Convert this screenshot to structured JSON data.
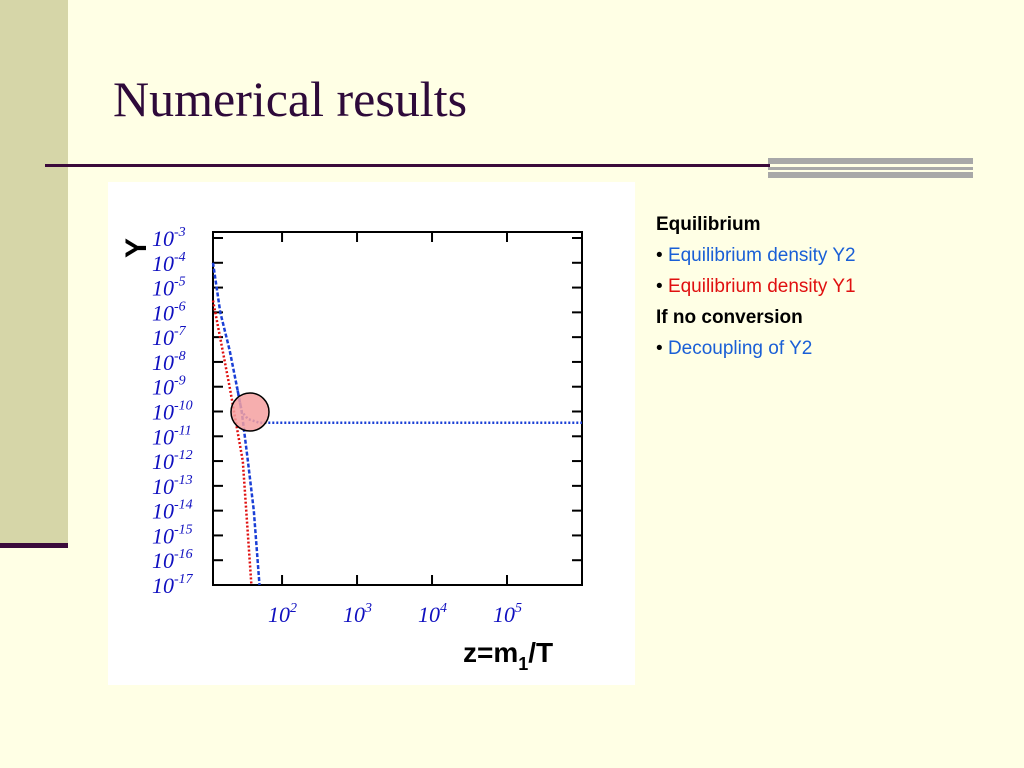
{
  "slide": {
    "title": "Numerical results",
    "notes": [
      {
        "text": "Equilibrium",
        "bold": true,
        "color": "#000000"
      },
      {
        "text": "Equilibrium density Y2",
        "bullet": true,
        "color": "#1a5fd6"
      },
      {
        "text": "Equilibrium density Y1",
        "bullet": true,
        "color": "#e01010"
      },
      {
        "text": "If no conversion",
        "bold": true,
        "color": "#000000"
      },
      {
        "text": "Decoupling of Y2",
        "bullet": true,
        "color": "#1a5fd6"
      }
    ]
  },
  "chart_data": {
    "type": "line",
    "ylabel": "Y",
    "xlabel": {
      "text": "z=m",
      "sub": "1",
      "tail": "/T"
    },
    "xscale": "log",
    "yscale": "log",
    "xlim": [
      12,
      1000000
    ],
    "ylim": [
      1e-17,
      0.001
    ],
    "xticks": [
      {
        "value": 100,
        "label": "10",
        "sup": "2"
      },
      {
        "value": 1000,
        "label": "10",
        "sup": "3"
      },
      {
        "value": 10000,
        "label": "10",
        "sup": "4"
      },
      {
        "value": 100000,
        "label": "10",
        "sup": "5"
      }
    ],
    "yticks": [
      {
        "value": 0.001,
        "label": "10",
        "sup": "-3"
      },
      {
        "value": 0.0001,
        "label": "10",
        "sup": "-4"
      },
      {
        "value": 1e-05,
        "label": "10",
        "sup": "-5"
      },
      {
        "value": 1e-06,
        "label": "10",
        "sup": "-6"
      },
      {
        "value": 1e-07,
        "label": "10",
        "sup": "-7"
      },
      {
        "value": 1e-08,
        "label": "10",
        "sup": "-8"
      },
      {
        "value": 1e-09,
        "label": "10",
        "sup": "-9"
      },
      {
        "value": 1e-10,
        "label": "10",
        "sup": "-10"
      },
      {
        "value": 1e-11,
        "label": "10",
        "sup": "-11"
      },
      {
        "value": 1e-12,
        "label": "10",
        "sup": "-12"
      },
      {
        "value": 1e-13,
        "label": "10",
        "sup": "-13"
      },
      {
        "value": 1e-14,
        "label": "10",
        "sup": "-14"
      },
      {
        "value": 1e-15,
        "label": "10",
        "sup": "-15"
      },
      {
        "value": 1e-16,
        "label": "10",
        "sup": "-16"
      },
      {
        "value": 1e-17,
        "label": "10",
        "sup": "-17"
      }
    ],
    "series": [
      {
        "x": [
          12,
          15,
          20,
          25,
          29,
          35,
          42,
          50
        ],
        "values": [
          0.0001,
          1e-06,
          3e-08,
          1e-09,
          1e-10,
          1e-12,
          1e-14,
          1e-17
        ],
        "color": "#1a3fd6",
        "dash": "dashed"
      },
      {
        "x": [
          25,
          29,
          35,
          50,
          1000,
          1000000
        ],
        "values": [
          1e-09,
          1e-10,
          5e-11,
          3.5e-11,
          3.5e-11,
          3.5e-11
        ],
        "color": "#1a3fd6",
        "dash": "dotted"
      },
      {
        "x": [
          12,
          20,
          30,
          39
        ],
        "values": [
          3e-06,
          1e-09,
          1e-12,
          1e-17
        ],
        "color": "#e01010",
        "dash": "dotted"
      }
    ]
  }
}
